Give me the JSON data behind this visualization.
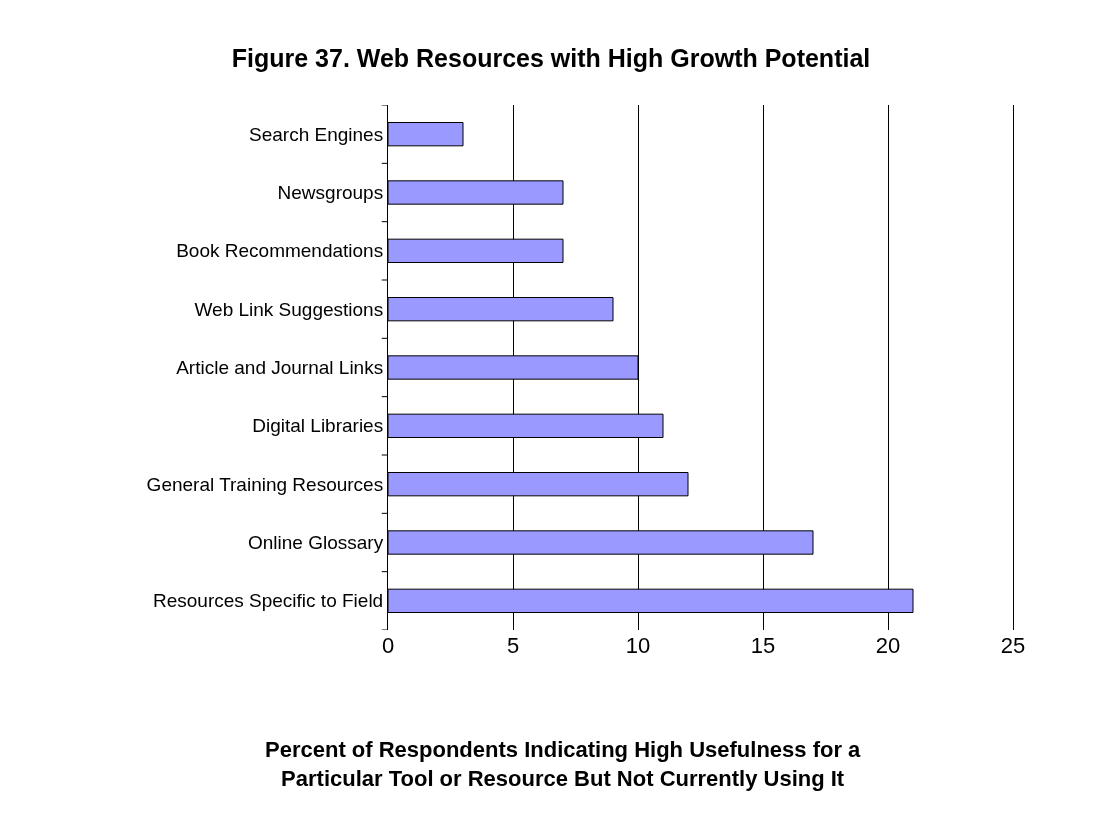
{
  "chart_data": {
    "type": "bar",
    "orientation": "horizontal",
    "title": "Figure 37. Web Resources with High Growth Potential",
    "xlabel": "Percent of Respondents Indicating High Usefulness for a Particular Tool or Resource But Not Currently Using It",
    "categories": [
      "Search Engines",
      "Newsgroups",
      "Book Recommendations",
      "Web Link Suggestions",
      "Article and Journal Links",
      "Digital Libraries",
      "General Training Resources",
      "Online Glossary",
      "Resources Specific to Field"
    ],
    "values": [
      3,
      7,
      7,
      9,
      10,
      11,
      12,
      17,
      21
    ],
    "color": "#9999ff",
    "xlim": [
      0,
      25
    ],
    "xticks": [
      0,
      5,
      10,
      15,
      20,
      25
    ],
    "grid": "x"
  }
}
